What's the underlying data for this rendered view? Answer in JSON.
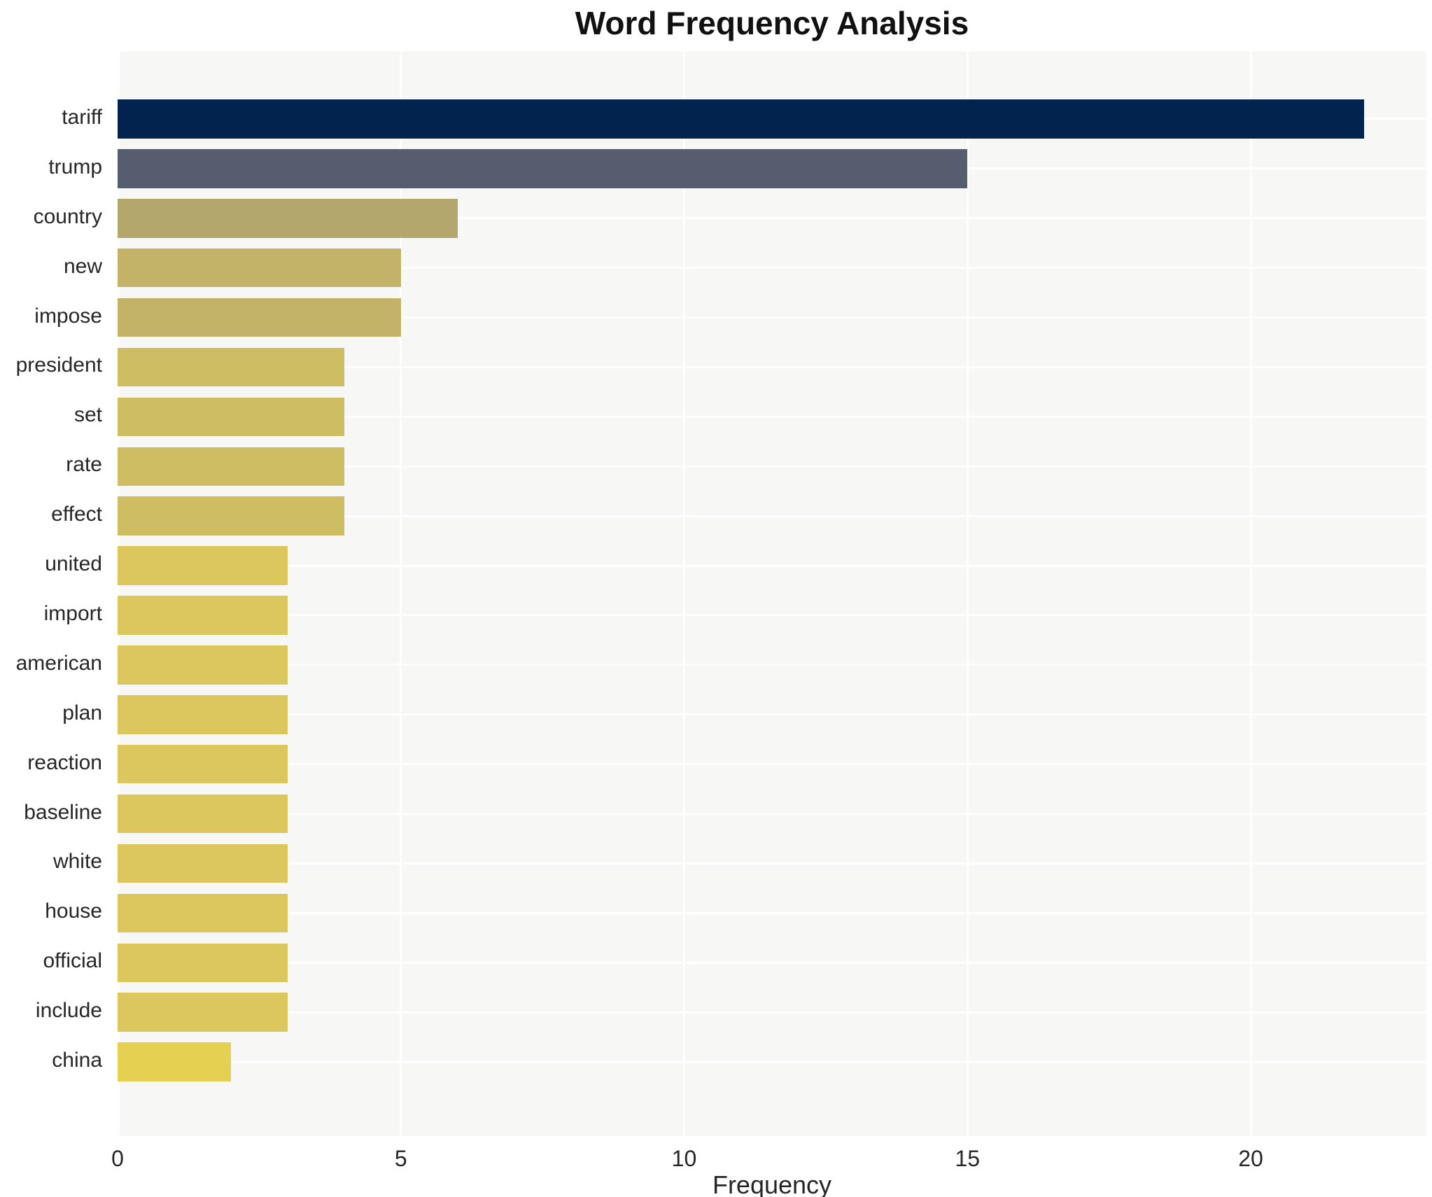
{
  "chart_data": {
    "type": "bar",
    "orientation": "horizontal",
    "title": "Word Frequency Analysis",
    "xlabel": "Frequency",
    "ylabel": "",
    "categories": [
      "tariff",
      "trump",
      "country",
      "new",
      "impose",
      "president",
      "set",
      "rate",
      "effect",
      "united",
      "import",
      "american",
      "plan",
      "reaction",
      "baseline",
      "white",
      "house",
      "official",
      "include",
      "china"
    ],
    "values": [
      22,
      15,
      6,
      5,
      5,
      4,
      4,
      4,
      4,
      3,
      3,
      3,
      3,
      3,
      3,
      3,
      3,
      3,
      3,
      2
    ],
    "bar_colors": [
      "#01234e",
      "#565d6e",
      "#b3a76b",
      "#c2b369",
      "#c2b369",
      "#cebd63",
      "#cebd63",
      "#cebd63",
      "#cebd63",
      "#dbc75d",
      "#dbc75d",
      "#dbc75d",
      "#dbc75d",
      "#dbc75d",
      "#dbc75d",
      "#dbc75d",
      "#dbc75d",
      "#dbc75d",
      "#dbc75d",
      "#e5d052"
    ],
    "x_ticks": [
      0,
      5,
      10,
      15,
      20
    ],
    "xlim": [
      0,
      23.1
    ],
    "grid": true,
    "legend": false,
    "plot_background": "#f7f7f5",
    "grid_color": "#ffffff",
    "text_color": "#262626",
    "title_color": "#111111"
  }
}
